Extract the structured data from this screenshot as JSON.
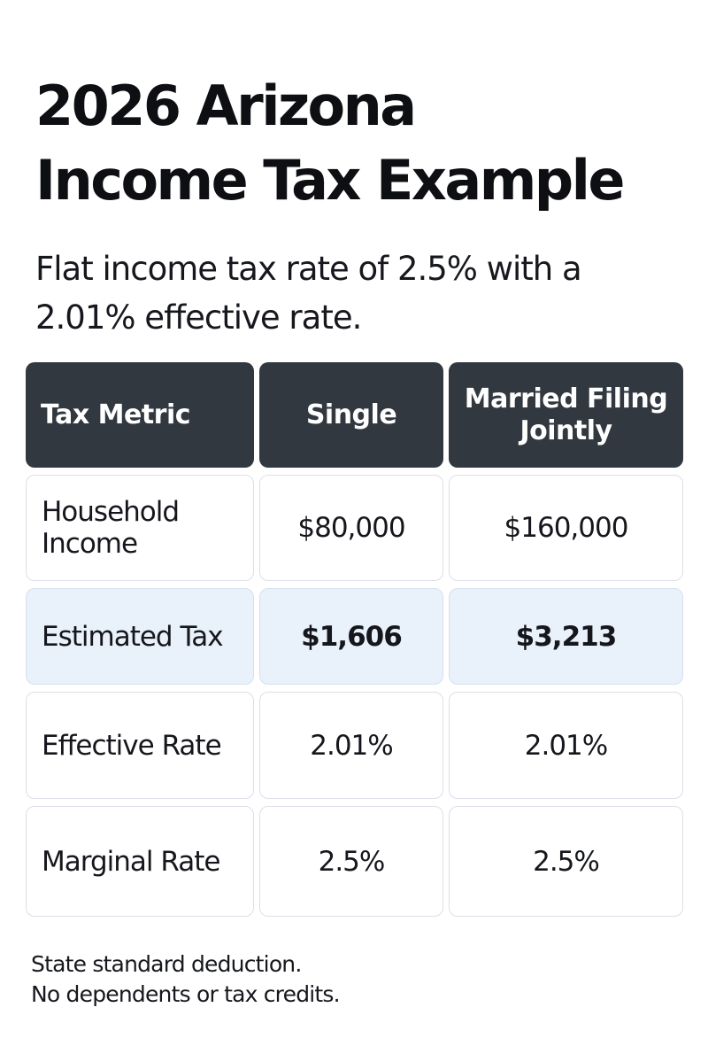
{
  "title_line1": "2026 Arizona",
  "title_line2": "Income Tax Example",
  "subtitle_line1": "Flat income tax rate of 2.5% with a",
  "subtitle_line2": "2.01% effective rate.",
  "table": {
    "headers": [
      "Tax Metric",
      "Single",
      "Married Filing Jointly"
    ],
    "rows": [
      {
        "metric": "Household Income",
        "single": "$80,000",
        "married": "$160,000",
        "highlight": false,
        "emphasis": false
      },
      {
        "metric": "Estimated Tax",
        "single": "$1,606",
        "married": "$3,213",
        "highlight": true,
        "emphasis": true
      },
      {
        "metric": "Effective Rate",
        "single": "2.01%",
        "married": "2.01%",
        "highlight": false,
        "emphasis": false
      },
      {
        "metric": "Marginal Rate",
        "single": "2.5%",
        "married": "2.5%",
        "highlight": false,
        "emphasis": false
      }
    ]
  },
  "footnote_line1": "State standard deduction.",
  "footnote_line2": "No dependents or tax credits.",
  "colors": {
    "header_bg": "#323840",
    "highlight_bg": "#e9f1fb",
    "cell_border": "#dcdfe8"
  }
}
